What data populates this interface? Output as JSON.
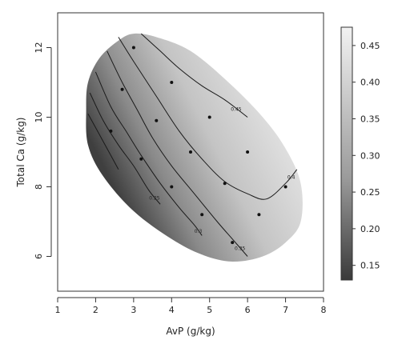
{
  "chart_data": {
    "type": "heatmap",
    "subtype": "filled-contour-surface",
    "xlabel": "AvP (g/kg)",
    "ylabel": "Total Ca (g/kg)",
    "xlim": [
      1,
      8
    ],
    "ylim": [
      5,
      13
    ],
    "x_ticks": [
      "1",
      "2",
      "3",
      "4",
      "5",
      "6",
      "7",
      "8"
    ],
    "x_tick_values": [
      1,
      2,
      3,
      4,
      5,
      6,
      7,
      8
    ],
    "y_ticks": [
      "6",
      "8",
      "10",
      "12"
    ],
    "y_tick_values": [
      6,
      8,
      10,
      12
    ],
    "grid": false,
    "colorbar": {
      "position": "right",
      "range": [
        0.13,
        0.475
      ],
      "low_color": "#3a3a3a",
      "high_color": "#f2f2f2",
      "ticks": [
        "0.15",
        "0.20",
        "0.25",
        "0.30",
        "0.35",
        "0.40",
        "0.45"
      ],
      "tick_values": [
        0.15,
        0.2,
        0.25,
        0.3,
        0.35,
        0.4,
        0.45
      ]
    },
    "surface_region_outline": [
      [
        1.8,
        11.0
      ],
      [
        2.1,
        11.7
      ],
      [
        2.6,
        12.2
      ],
      [
        3.0,
        12.4
      ],
      [
        3.6,
        12.3
      ],
      [
        4.5,
        11.9
      ],
      [
        5.5,
        11.0
      ],
      [
        6.4,
        10.0
      ],
      [
        7.0,
        9.1
      ],
      [
        7.4,
        8.1
      ],
      [
        7.4,
        7.0
      ],
      [
        7.0,
        6.4
      ],
      [
        6.4,
        6.0
      ],
      [
        5.6,
        5.85
      ],
      [
        4.8,
        6.05
      ],
      [
        4.0,
        6.5
      ],
      [
        3.0,
        7.3
      ],
      [
        2.2,
        8.3
      ],
      [
        1.8,
        9.2
      ],
      [
        1.75,
        10.2
      ]
    ],
    "contour_lines": [
      {
        "level": 0.45,
        "label": "0.45",
        "points": [
          [
            3.2,
            12.4
          ],
          [
            3.7,
            11.9
          ],
          [
            4.2,
            11.4
          ],
          [
            4.8,
            10.9
          ],
          [
            5.4,
            10.5
          ],
          [
            6.0,
            10.0
          ]
        ]
      },
      {
        "level": 0.4,
        "label": "0.4",
        "points": [
          [
            2.6,
            12.3
          ],
          [
            3.0,
            11.6
          ],
          [
            3.6,
            10.6
          ],
          [
            4.2,
            9.6
          ],
          [
            4.8,
            8.8
          ],
          [
            5.4,
            8.15
          ],
          [
            6.0,
            7.8
          ],
          [
            6.5,
            7.65
          ],
          [
            7.0,
            8.1
          ],
          [
            7.3,
            8.5
          ]
        ]
      },
      {
        "level": 0.35,
        "label": "0.35",
        "points": [
          [
            2.3,
            11.9
          ],
          [
            2.7,
            11.0
          ],
          [
            3.1,
            10.2
          ],
          [
            3.5,
            9.4
          ],
          [
            4.0,
            8.6
          ],
          [
            4.6,
            7.8
          ],
          [
            5.2,
            7.0
          ],
          [
            5.6,
            6.5
          ],
          [
            6.0,
            6.0
          ]
        ]
      },
      {
        "level": 0.3,
        "label": "0.3",
        "points": [
          [
            2.0,
            11.3
          ],
          [
            2.4,
            10.3
          ],
          [
            2.8,
            9.6
          ],
          [
            3.2,
            8.9
          ],
          [
            3.7,
            8.1
          ],
          [
            4.2,
            7.4
          ],
          [
            4.6,
            6.9
          ],
          [
            4.8,
            6.6
          ]
        ]
      },
      {
        "level": 0.25,
        "label": "0.25",
        "points": [
          [
            1.85,
            10.7
          ],
          [
            2.2,
            9.9
          ],
          [
            2.6,
            9.2
          ],
          [
            3.0,
            8.6
          ],
          [
            3.4,
            7.9
          ],
          [
            3.7,
            7.5
          ]
        ]
      },
      {
        "level": 0.2,
        "label": "",
        "points": [
          [
            1.8,
            10.1
          ],
          [
            2.1,
            9.5
          ],
          [
            2.4,
            8.9
          ],
          [
            2.6,
            8.5
          ]
        ]
      }
    ],
    "scatter_points": [
      {
        "x": 2.4,
        "y": 9.6
      },
      {
        "x": 2.7,
        "y": 10.8
      },
      {
        "x": 3.0,
        "y": 12.0
      },
      {
        "x": 3.2,
        "y": 8.8
      },
      {
        "x": 3.6,
        "y": 9.9
      },
      {
        "x": 4.0,
        "y": 11.0
      },
      {
        "x": 4.0,
        "y": 8.0
      },
      {
        "x": 4.5,
        "y": 9.0
      },
      {
        "x": 4.8,
        "y": 7.2
      },
      {
        "x": 5.0,
        "y": 10.0
      },
      {
        "x": 5.4,
        "y": 8.1
      },
      {
        "x": 5.6,
        "y": 6.4
      },
      {
        "x": 6.0,
        "y": 9.0
      },
      {
        "x": 6.3,
        "y": 7.2
      },
      {
        "x": 7.0,
        "y": 8.0
      }
    ]
  }
}
